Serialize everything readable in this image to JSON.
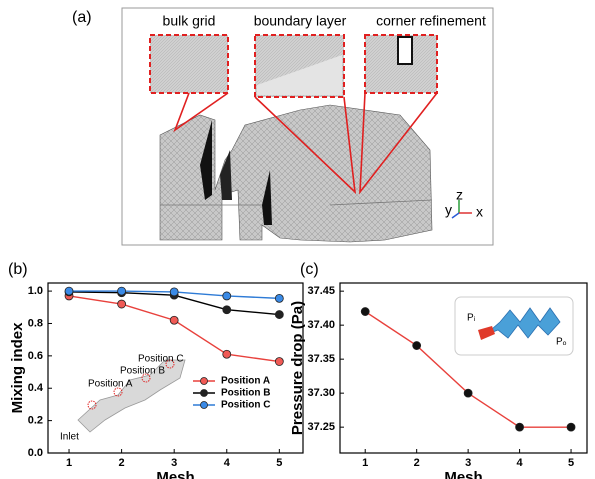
{
  "figure_a": {
    "panel": "(a)",
    "insets": [
      "bulk grid",
      "boundary layer",
      "corner refinement"
    ],
    "axes": [
      "y",
      "z",
      "x"
    ]
  },
  "chart_data": [
    {
      "panel": "(b)",
      "type": "line",
      "xlabel": "Mesh",
      "ylabel": "Mixing index",
      "x": [
        1,
        2,
        3,
        4,
        5
      ],
      "xlim": [
        0.6,
        5.45
      ],
      "xticks": [
        1,
        2,
        3,
        4,
        5
      ],
      "ylim": [
        0,
        1.05
      ],
      "yticks": [
        {
          "value": 0,
          "label": "0.0"
        },
        0.2,
        0.4,
        0.6,
        0.8,
        {
          "value": 1,
          "label": "1.0"
        }
      ],
      "series": [
        {
          "name": "Position A",
          "color": "#e8413c",
          "marker_color": "#f05a55",
          "values": [
            0.97,
            0.92,
            0.82,
            0.61,
            0.565
          ]
        },
        {
          "name": "Position B",
          "color": "#000000",
          "marker_color": "#222222",
          "values": [
            0.995,
            0.99,
            0.975,
            0.885,
            0.855
          ]
        },
        {
          "name": "Position C",
          "color": "#2e7bd6",
          "marker_color": "#3a8ae6",
          "values": [
            1.0,
            1.0,
            0.995,
            0.97,
            0.955
          ]
        }
      ],
      "legend": "lower right",
      "annotations": [
        "Inlet",
        "Position A",
        "Position B",
        "Position C"
      ]
    },
    {
      "panel": "(c)",
      "type": "line",
      "xlabel": "Mesh",
      "ylabel": "Pressure drop (Pa)",
      "x": [
        1,
        2,
        3,
        4,
        5
      ],
      "xlim": [
        0.51,
        5.31
      ],
      "xticks": [
        1,
        2,
        3,
        4,
        5
      ],
      "ylim": [
        37.212,
        37.462
      ],
      "yticks": [
        37.25,
        {
          "value": 37.3,
          "label": "37.30"
        },
        37.35,
        {
          "value": 37.4,
          "label": "37.40"
        },
        37.45
      ],
      "series": [
        {
          "color": "#e8413c",
          "marker_color": "#111111",
          "values": [
            37.42,
            37.37,
            37.3,
            37.25,
            37.25
          ]
        }
      ],
      "annotations": [
        "Pᵢ",
        "Pₒ"
      ]
    }
  ]
}
